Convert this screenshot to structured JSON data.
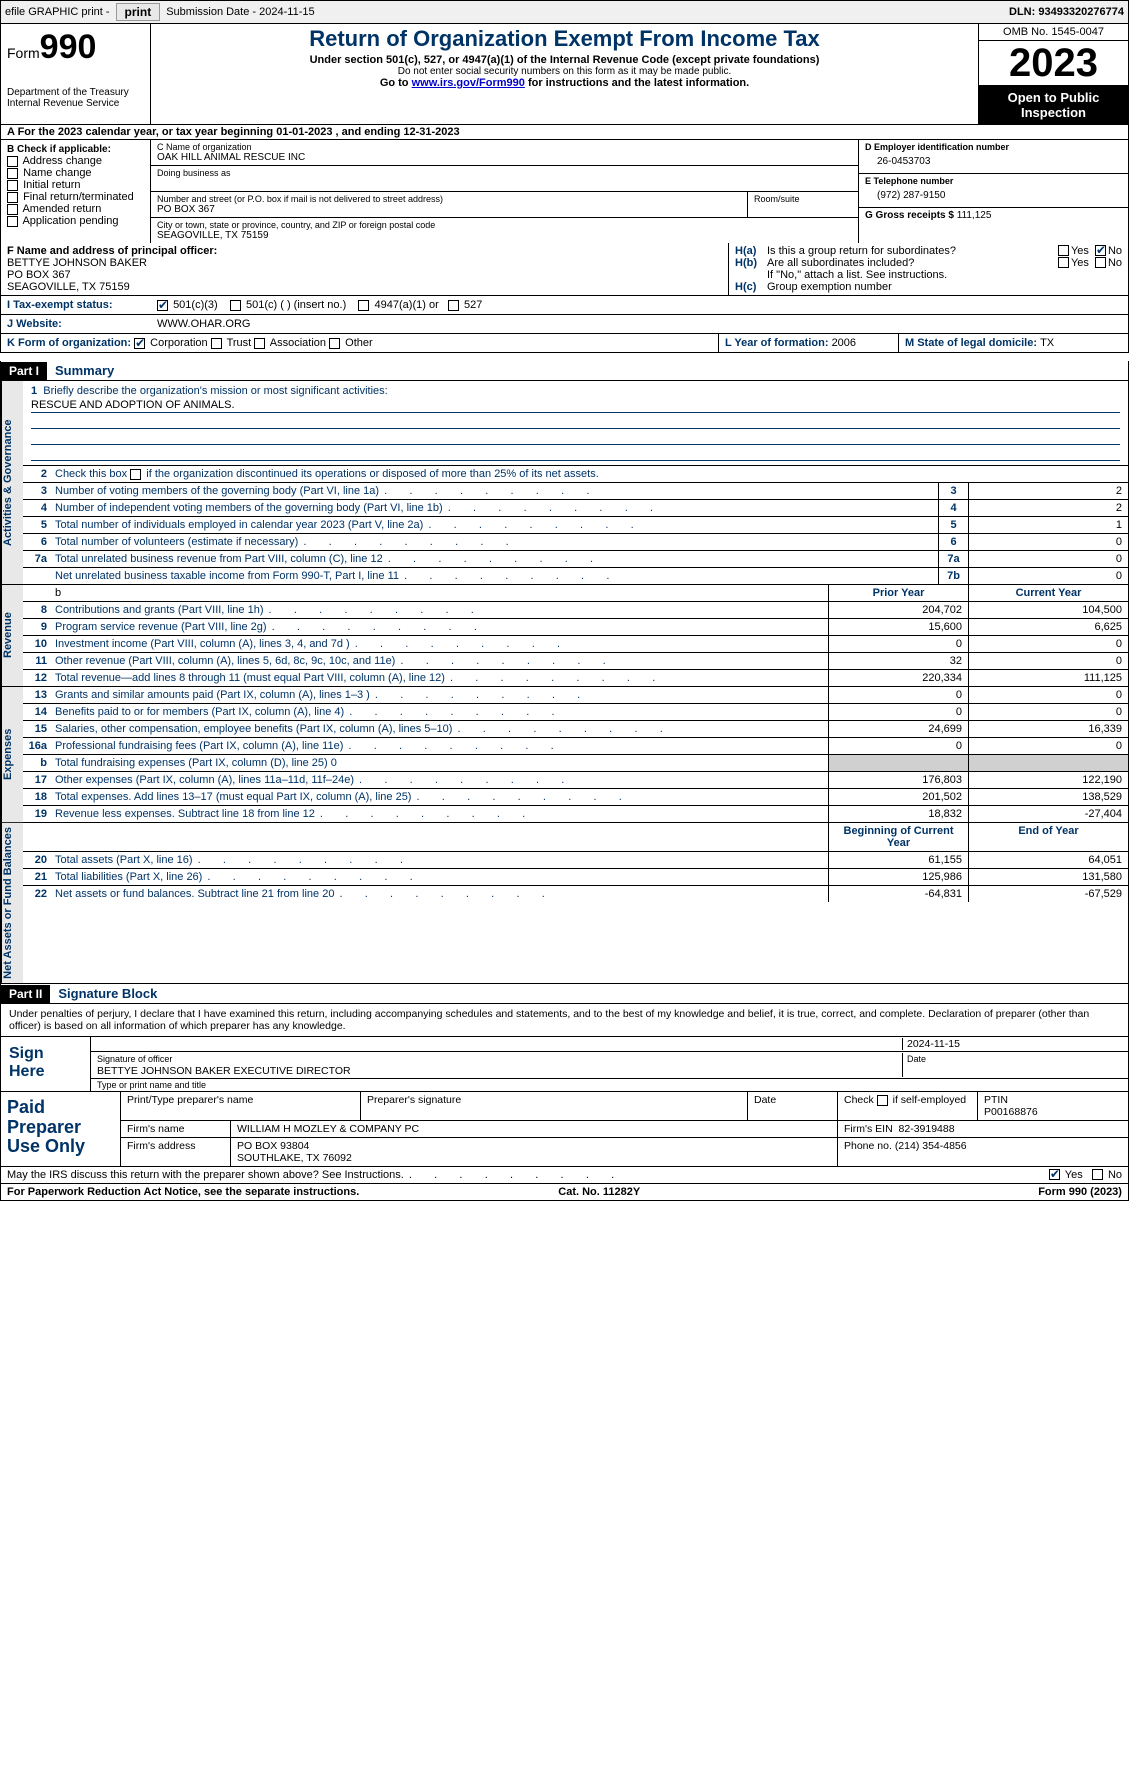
{
  "topbar": {
    "efile": "efile GRAPHIC print -",
    "submission_label": "Submission Date - ",
    "submission_date": "2024-11-15",
    "dln_label": "DLN: ",
    "dln": "93493320276774"
  },
  "header": {
    "form_word": "Form",
    "form_num": "990",
    "dept": "Department of the Treasury Internal Revenue Service",
    "title": "Return of Organization Exempt From Income Tax",
    "sub": "Under section 501(c), 527, or 4947(a)(1) of the Internal Revenue Code (except private foundations)",
    "note": "Do not enter social security numbers on this form as it may be made public.",
    "link_pre": "Go to ",
    "link_url": "www.irs.gov/Form990",
    "link_post": " for instructions and the latest information.",
    "omb": "OMB No. 1545-0047",
    "year": "2023",
    "open": "Open to Public Inspection"
  },
  "period": {
    "prefix": "A For the 2023 calendar year, or tax year beginning ",
    "begin": "01-01-2023",
    "mid": " , and ending ",
    "end": "12-31-2023"
  },
  "boxB": {
    "title": "B Check if applicable:",
    "items": [
      "Address change",
      "Name change",
      "Initial return",
      "Final return/terminated",
      "Amended return",
      "Application pending"
    ]
  },
  "boxC": {
    "name_lbl": "C Name of organization",
    "name": "OAK HILL ANIMAL RESCUE INC",
    "dba_lbl": "Doing business as",
    "addr_lbl": "Number and street (or P.O. box if mail is not delivered to street address)",
    "room_lbl": "Room/suite",
    "addr": "PO BOX 367",
    "city_lbl": "City or town, state or province, country, and ZIP or foreign postal code",
    "city": "SEAGOVILLE, TX   75159"
  },
  "boxD": {
    "ein_lbl": "D Employer identification number",
    "ein": "26-0453703",
    "tel_lbl": "E Telephone number",
    "tel": "(972) 287-9150",
    "gross_lbl": "G Gross receipts $ ",
    "gross": "111,125"
  },
  "boxF": {
    "lbl": "F  Name and address of principal officer:",
    "name": "BETTYE JOHNSON BAKER",
    "addr1": "PO BOX 367",
    "addr2": "SEAGOVILLE, TX   75159"
  },
  "boxH": {
    "ha": "Is this a group return for subordinates?",
    "hb": "Are all subordinates included?",
    "hb_note": "If \"No,\" attach a list. See instructions.",
    "hc": "Group exemption number",
    "yes": "Yes",
    "no": "No"
  },
  "status": {
    "lbl": "I   Tax-exempt status:",
    "o1": "501(c)(3)",
    "o2": "501(c) (   ) (insert no.)",
    "o3": "4947(a)(1) or",
    "o4": "527"
  },
  "web": {
    "lbl": "J   Website:",
    "val": "WWW.OHAR.ORG"
  },
  "formorg": {
    "lbl": "K Form of organization:",
    "corp": "Corporation",
    "trust": "Trust",
    "assoc": "Association",
    "other": "Other",
    "l_lbl": "L Year of formation: ",
    "l_val": "2006",
    "m_lbl": "M State of legal domicile: ",
    "m_val": "TX"
  },
  "part1": {
    "tag": "Part I",
    "title": "Summary"
  },
  "mission": {
    "q": "Briefly describe the organization's mission or most significant activities:",
    "a": "RESCUE AND ADOPTION OF ANIMALS."
  },
  "line2": "Check this box           if the organization discontinued its operations or disposed of more than 25% of its net assets.",
  "sidelabels": {
    "ag": "Activities & Governance",
    "rev": "Revenue",
    "exp": "Expenses",
    "net": "Net Assets or Fund Balances"
  },
  "govlines": [
    {
      "n": "3",
      "t": "Number of voting members of the governing body (Part VI, line 1a)",
      "b": "3",
      "v": "2"
    },
    {
      "n": "4",
      "t": "Number of independent voting members of the governing body (Part VI, line 1b)",
      "b": "4",
      "v": "2"
    },
    {
      "n": "5",
      "t": "Total number of individuals employed in calendar year 2023 (Part V, line 2a)",
      "b": "5",
      "v": "1"
    },
    {
      "n": "6",
      "t": "Total number of volunteers (estimate if necessary)",
      "b": "6",
      "v": "0"
    },
    {
      "n": "7a",
      "t": "Total unrelated business revenue from Part VIII, column (C), line 12",
      "b": "7a",
      "v": "0"
    },
    {
      "n": "",
      "t": "Net unrelated business taxable income from Form 990-T, Part I, line 11",
      "b": "7b",
      "v": "0"
    }
  ],
  "colhdrs": {
    "prior": "Prior Year",
    "current": "Current Year",
    "beg": "Beginning of Current Year",
    "end": "End of Year"
  },
  "revlines": [
    {
      "n": "8",
      "t": "Contributions and grants (Part VIII, line 1h)",
      "p": "204,702",
      "c": "104,500"
    },
    {
      "n": "9",
      "t": "Program service revenue (Part VIII, line 2g)",
      "p": "15,600",
      "c": "6,625"
    },
    {
      "n": "10",
      "t": "Investment income (Part VIII, column (A), lines 3, 4, and 7d )",
      "p": "0",
      "c": "0"
    },
    {
      "n": "11",
      "t": "Other revenue (Part VIII, column (A), lines 5, 6d, 8c, 9c, 10c, and 11e)",
      "p": "32",
      "c": "0"
    },
    {
      "n": "12",
      "t": "Total revenue—add lines 8 through 11 (must equal Part VIII, column (A), line 12)",
      "p": "220,334",
      "c": "111,125"
    }
  ],
  "explines": [
    {
      "n": "13",
      "t": "Grants and similar amounts paid (Part IX, column (A), lines 1–3 )",
      "p": "0",
      "c": "0"
    },
    {
      "n": "14",
      "t": "Benefits paid to or for members (Part IX, column (A), line 4)",
      "p": "0",
      "c": "0"
    },
    {
      "n": "15",
      "t": "Salaries, other compensation, employee benefits (Part IX, column (A), lines 5–10)",
      "p": "24,699",
      "c": "16,339"
    },
    {
      "n": "16a",
      "t": "Professional fundraising fees (Part IX, column (A), line 11e)",
      "p": "0",
      "c": "0"
    },
    {
      "n": "b",
      "t": "Total fundraising expenses (Part IX, column (D), line 25) 0",
      "p": "",
      "c": "",
      "shade": true
    },
    {
      "n": "17",
      "t": "Other expenses (Part IX, column (A), lines 11a–11d, 11f–24e)",
      "p": "176,803",
      "c": "122,190"
    },
    {
      "n": "18",
      "t": "Total expenses. Add lines 13–17 (must equal Part IX, column (A), line 25)",
      "p": "201,502",
      "c": "138,529"
    },
    {
      "n": "19",
      "t": "Revenue less expenses. Subtract line 18 from line 12",
      "p": "18,832",
      "c": "-27,404"
    }
  ],
  "netlines": [
    {
      "n": "20",
      "t": "Total assets (Part X, line 16)",
      "p": "61,155",
      "c": "64,051"
    },
    {
      "n": "21",
      "t": "Total liabilities (Part X, line 26)",
      "p": "125,986",
      "c": "131,580"
    },
    {
      "n": "22",
      "t": "Net assets or fund balances. Subtract line 21 from line 20",
      "p": "-64,831",
      "c": "-67,529"
    }
  ],
  "part2": {
    "tag": "Part II",
    "title": "Signature Block"
  },
  "decl": "Under penalties of perjury, I declare that I have examined this return, including accompanying schedules and statements, and to the best of my knowledge and belief, it is true, correct, and complete. Declaration of preparer (other than officer) is based on all information of which preparer has any knowledge.",
  "sign": {
    "left": "Sign Here",
    "date": "2024-11-15",
    "sig_lbl": "Signature of officer",
    "name": "BETTYE JOHNSON BAKER  EXECUTIVE DIRECTOR",
    "type_lbl": "Type or print name and title",
    "date_lbl": "Date"
  },
  "paid": {
    "left": "Paid Preparer Use Only",
    "h1": "Print/Type preparer's name",
    "h2": "Preparer's signature",
    "h3": "Date",
    "h4_pre": "Check",
    "h4_post": "if self-employed",
    "h5": "PTIN",
    "ptin": "P00168876",
    "firm_lbl": "Firm's name",
    "firm": "WILLIAM H MOZLEY & COMPANY PC",
    "ein_lbl": "Firm's EIN",
    "ein": "82-3919488",
    "addr_lbl": "Firm's address",
    "addr1": "PO BOX 93804",
    "addr2": "SOUTHLAKE, TX   76092",
    "phone_lbl": "Phone no.",
    "phone": "(214) 354-4856"
  },
  "discuss": {
    "q": "May the IRS discuss this return with the preparer shown above? See Instructions.",
    "yes": "Yes",
    "no": "No"
  },
  "footer": {
    "left": "For Paperwork Reduction Act Notice, see the separate instructions.",
    "mid": "Cat. No. 11282Y",
    "right_pre": "Form ",
    "right_b": "990",
    "right_post": " (2023)"
  }
}
